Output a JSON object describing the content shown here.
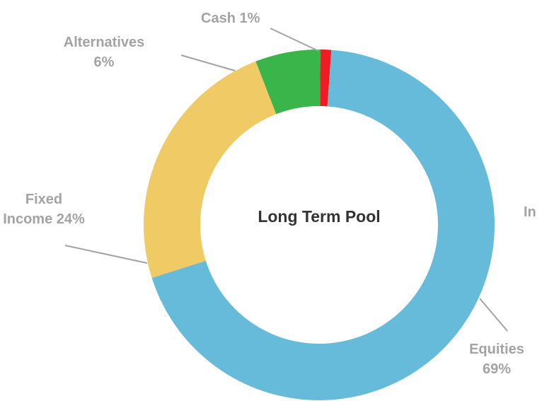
{
  "chart_data": {
    "type": "pie",
    "title": "Long Term Pool",
    "categories": [
      "Equities",
      "Fixed Income",
      "Alternatives",
      "Cash"
    ],
    "values": [
      69,
      24,
      6,
      1
    ],
    "value_labels": [
      "69%",
      "24%",
      "6%",
      "1%"
    ],
    "colors": [
      "#66bbdb",
      "#f0ca64",
      "#3ab54a",
      "#ee1c25"
    ],
    "donut": true,
    "annotation": "In"
  }
}
